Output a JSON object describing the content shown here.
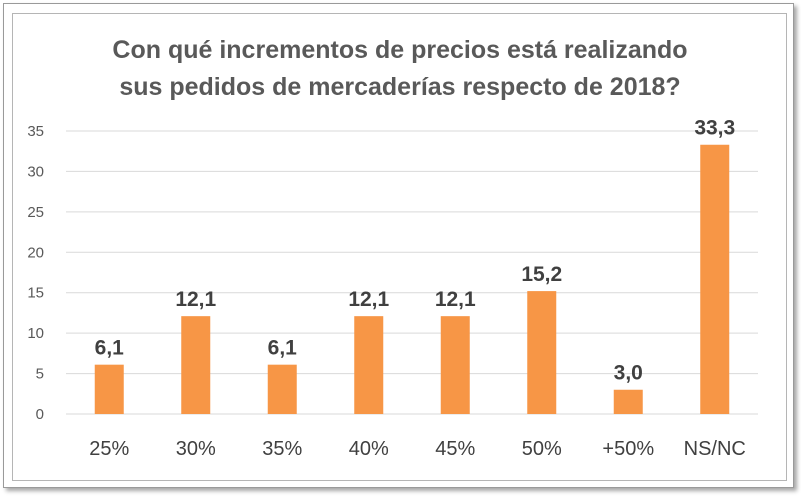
{
  "chart_data": {
    "type": "bar",
    "title_lines": [
      "Con qué incrementos de precios está realizando",
      "sus pedidos de mercaderías respecto de 2018?"
    ],
    "categories": [
      "25%",
      "30%",
      "35%",
      "40%",
      "45%",
      "50%",
      "+50%",
      "NS/NC"
    ],
    "values": [
      6.1,
      12.1,
      6.1,
      12.1,
      12.1,
      15.2,
      3.0,
      33.3
    ],
    "data_labels": [
      "6,1",
      "12,1",
      "6,1",
      "12,1",
      "12,1",
      "15,2",
      "3,0",
      "33,3"
    ],
    "ylim": [
      0,
      35
    ],
    "yticks": [
      0,
      5,
      10,
      15,
      20,
      25,
      30,
      35
    ],
    "xlabel": "",
    "ylabel": "",
    "grid": true,
    "bar_color": "#F79646"
  }
}
